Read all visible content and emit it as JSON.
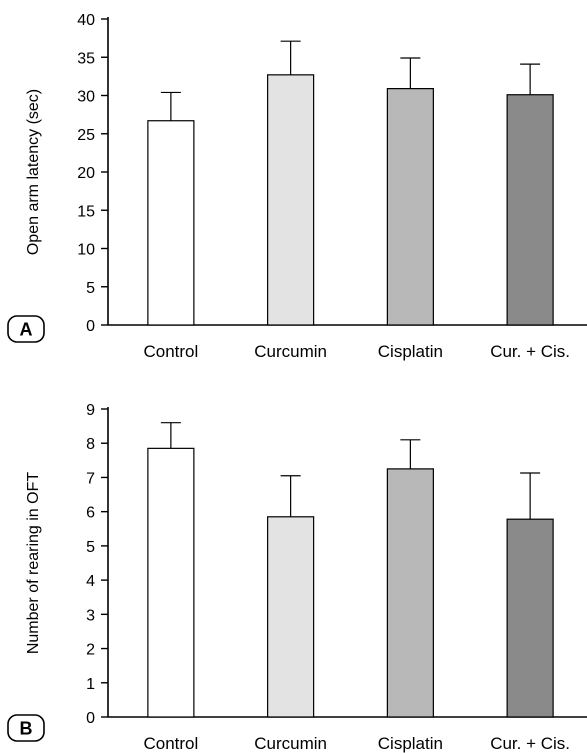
{
  "chart_data": [
    {
      "panel": "A",
      "type": "bar",
      "ylabel": "Open arm latency (sec)",
      "xlabel": "",
      "categories": [
        "Control",
        "Curcumin",
        "Cisplatin",
        "Cur. + Cis."
      ],
      "values": [
        26.7,
        32.7,
        30.9,
        30.1
      ],
      "errors": [
        3.7,
        4.4,
        4.0,
        4.0
      ],
      "bar_colors": [
        "#ffffff",
        "#e3e3e3",
        "#b8b8b8",
        "#8a8a8a"
      ],
      "ylim": [
        0,
        40
      ],
      "yticks": [
        0,
        5,
        10,
        15,
        20,
        25,
        30,
        35,
        40
      ],
      "grid": false
    },
    {
      "panel": "B",
      "type": "bar",
      "ylabel": "Number of rearing in OFT",
      "xlabel": "",
      "categories": [
        "Control",
        "Curcumin",
        "Cisplatin",
        "Cur. + Cis."
      ],
      "values": [
        7.85,
        5.85,
        7.25,
        5.78
      ],
      "errors": [
        0.75,
        1.2,
        0.85,
        1.35
      ],
      "bar_colors": [
        "#ffffff",
        "#e3e3e3",
        "#b8b8b8",
        "#8a8a8a"
      ],
      "ylim": [
        0,
        9
      ],
      "yticks": [
        0,
        1,
        2,
        3,
        4,
        5,
        6,
        7,
        8,
        9
      ],
      "grid": false
    }
  ]
}
